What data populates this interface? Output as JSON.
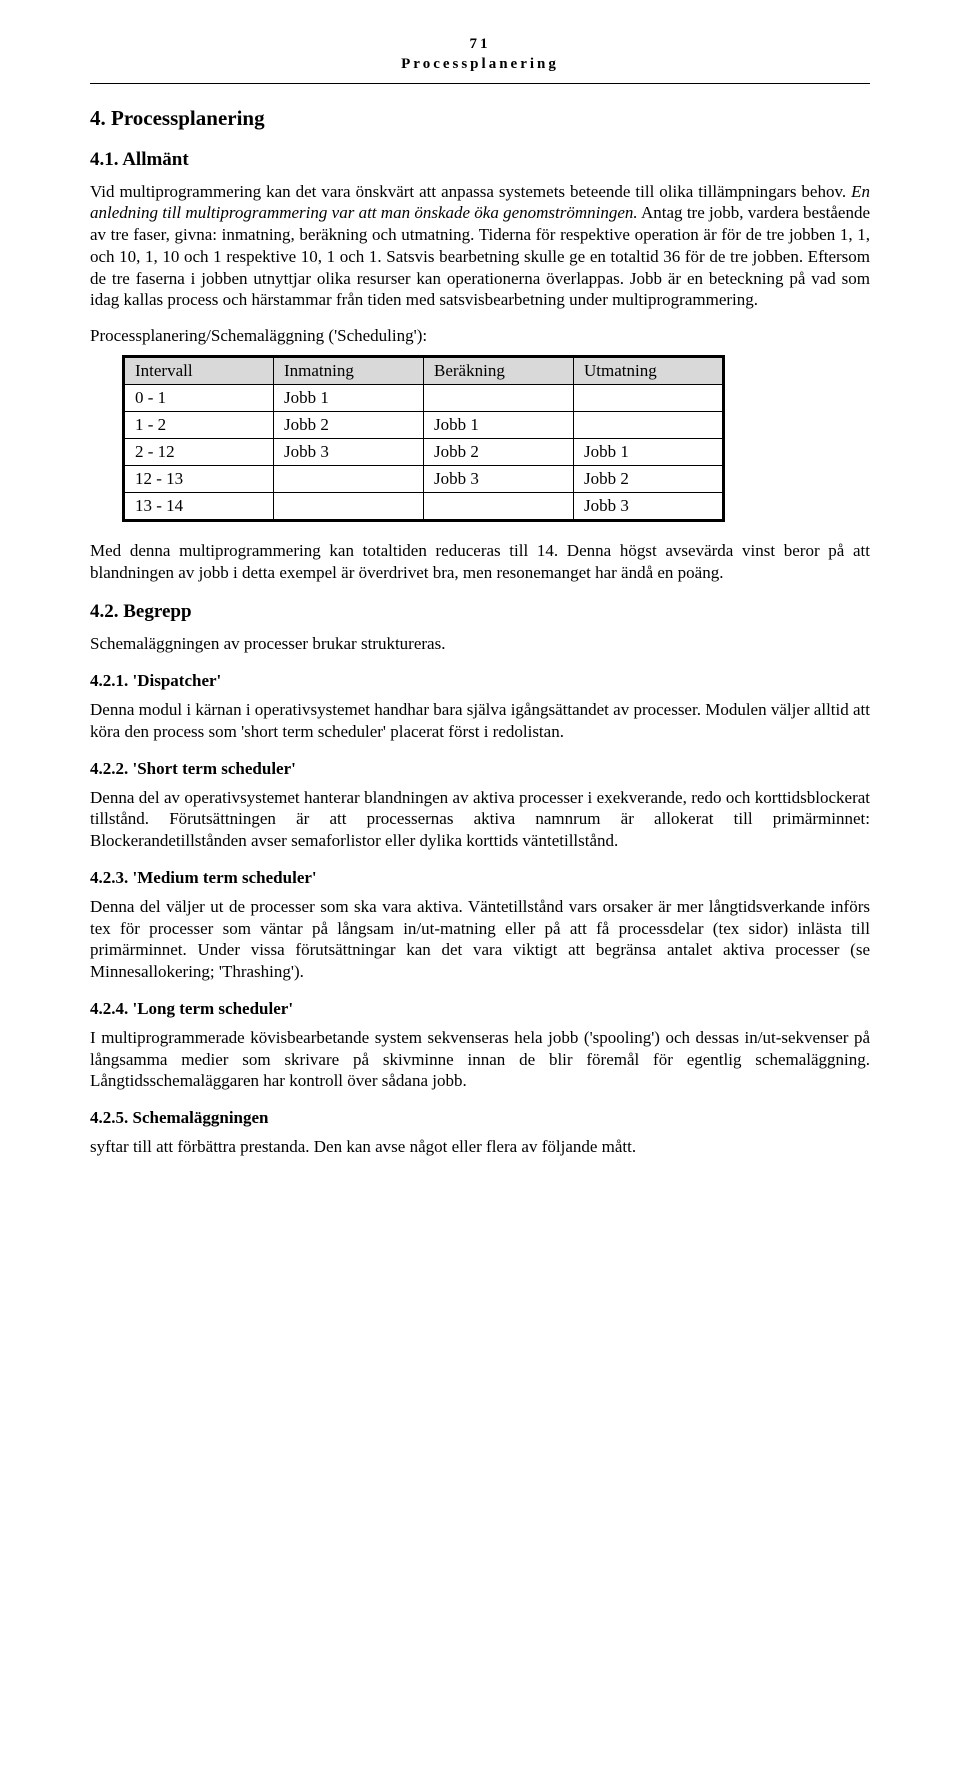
{
  "page": {
    "number": "71",
    "header": "Processplanering"
  },
  "sec4": {
    "heading": "4.   Processplanering",
    "s41": {
      "heading": "4.1.   Allmänt",
      "p1": "Vid multiprogrammering kan det vara önskvärt att anpassa systemets beteende till olika tillämpningars behov. ",
      "p1_italic": "En anledning till multiprogrammering var att man önskade öka genomströmningen.",
      "p1_tail": " Antag tre jobb, vardera bestående av tre faser, givna: inmatning, beräkning och utmatning. Tiderna för respektive operation är för de tre jobben 1, 1, och 10, 1, 10 och 1 respektive 10, 1 och 1. Satsvis bearbetning skulle ge en totaltid 36 för de tre jobben. Eftersom de tre faserna i jobben utnyttjar olika resurser kan operationerna överlappas. Jobb är en beteckning på vad som idag kallas process och härstammar från tiden med satsvisbearbetning under  multiprogrammering.",
      "p2": "Processplanering/Schemaläggning ('Scheduling'):",
      "table": {
        "headers": [
          "Intervall",
          "Inmatning",
          "Beräkning",
          "Utmatning"
        ],
        "rows": [
          [
            "0 - 1",
            "Jobb 1",
            "",
            ""
          ],
          [
            "1 - 2",
            "Jobb 2",
            "Jobb 1",
            ""
          ],
          [
            "2 - 12",
            "Jobb 3",
            "Jobb 2",
            "Jobb 1"
          ],
          [
            "12 - 13",
            "",
            "Jobb 3",
            "Jobb 2"
          ],
          [
            "13 - 14",
            "",
            "",
            "Jobb 3"
          ]
        ]
      },
      "p3": "Med denna multiprogrammering kan totaltiden reduceras till 14. Denna högst avsevärda vinst beror på att blandningen av jobb i detta exempel är överdrivet bra, men resonemanget har ändå en poäng."
    },
    "s42": {
      "heading": "4.2.   Begrepp",
      "p1": "Schemaläggningen av processer brukar struktureras.",
      "s421": {
        "heading": "4.2.1.   'Dispatcher'",
        "p1": "Denna modul i kärnan i operativsystemet handhar bara själva igångsättandet av processer. Modulen väljer alltid att köra den process som 'short term scheduler' placerat först i redolistan."
      },
      "s422": {
        "heading": "4.2.2.   'Short  term  scheduler'",
        "p1": "Denna del av operativsystemet hanterar blandningen av aktiva processer i exekverande, redo och korttidsblockerat tillstånd. Förutsättningen är att processernas aktiva namnrum är allokerat till primärminnet: Blockerandetillstånden avser semaforlistor eller dylika korttids väntetillstånd."
      },
      "s423": {
        "heading": "4.2.3.   'Medium  term  scheduler'",
        "p1": "Denna del väljer ut de processer som ska vara aktiva. Väntetillstånd vars orsaker är mer långtidsverkande införs tex för processer som väntar på långsam in/ut-matning eller på att få processdelar (tex sidor) inlästa till primärminnet. Under vissa förutsättningar kan det vara viktigt att begränsa antalet aktiva processer (se Minnesallokering; 'Thrashing')."
      },
      "s424": {
        "heading": "4.2.4.   'Long  term  scheduler'",
        "p1": "I multiprogrammerade kövisbearbetande system sekvenseras hela jobb ('spooling') och dessas in/ut-sekvenser på långsamma medier som skrivare på skivminne innan de blir föremål för egentlig schemaläggning. Långtidsschemaläggaren har kontroll över sådana jobb."
      },
      "s425": {
        "heading": "4.2.5.   Schemaläggningen",
        "p1": "syftar till att förbättra prestanda. Den kan avse något eller flera av följande mått."
      }
    }
  }
}
